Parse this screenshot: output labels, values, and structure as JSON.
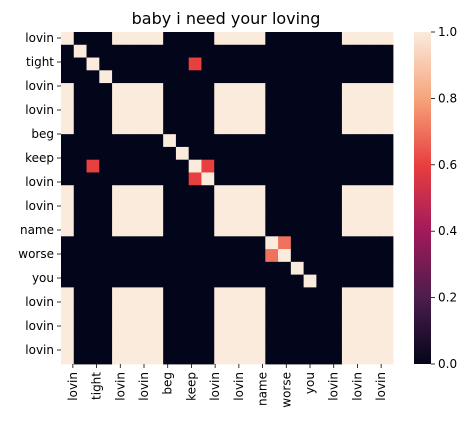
{
  "chart_data": {
    "type": "heatmap",
    "title": "baby i need your loving",
    "xlabel": "",
    "ylabel": "",
    "x_labels": [
      "lovin",
      "tight",
      "lovin",
      "lovin",
      "beg",
      "keep",
      "lovin",
      "lovin",
      "name",
      "worse",
      "you",
      "lovin",
      "lovin",
      "lovin"
    ],
    "y_labels": [
      "lovin",
      "",
      "tight",
      "",
      "lovin",
      "lovin",
      "beg",
      "keep",
      "lovin",
      "lovin",
      "name",
      "worse",
      "you",
      "lovin",
      "lovin",
      "lovin"
    ],
    "rows": [
      "lovin",
      "tight",
      "tight",
      "tight",
      "lovin",
      "lovin",
      "lovin",
      "lovin",
      "beg",
      "keep",
      "keep",
      "keep",
      "lovin",
      "lovin",
      "lovin",
      "lovin",
      "name",
      "name",
      "worse",
      "you",
      "lovin",
      "lovin",
      "lovin",
      "lovin",
      "lovin",
      "lovin"
    ],
    "columns": [
      "lovin",
      "lovin",
      "tight",
      "tight",
      "lovin",
      "lovin",
      "lovin",
      "lovin",
      "beg",
      "beg",
      "keep",
      "keep",
      "lovin",
      "lovin",
      "lovin",
      "lovin",
      "name",
      "name",
      "worse",
      "worse",
      "you",
      "you",
      "lovin",
      "lovin",
      "lovin",
      "lovin"
    ],
    "values": [
      [
        1,
        0,
        0,
        0,
        1,
        1,
        1,
        1,
        0,
        0,
        0,
        0,
        1,
        1,
        1,
        1,
        0,
        0,
        0,
        0,
        0,
        0,
        1,
        1,
        1,
        1
      ],
      [
        0,
        1,
        0,
        0,
        0,
        0,
        0,
        0,
        0,
        0,
        0,
        0,
        0,
        0,
        0,
        0,
        0,
        0,
        0,
        0,
        0,
        0,
        0,
        0,
        0,
        0
      ],
      [
        0,
        0,
        1,
        0,
        0,
        0,
        0,
        0,
        0,
        0,
        0.6,
        0,
        0,
        0,
        0,
        0,
        0,
        0,
        0,
        0,
        0,
        0,
        0,
        0,
        0,
        0
      ],
      [
        0,
        0,
        0,
        1,
        0,
        0,
        0,
        0,
        0,
        0,
        0,
        0,
        0,
        0,
        0,
        0,
        0,
        0,
        0,
        0,
        0,
        0,
        0,
        0,
        0,
        0
      ],
      [
        1,
        0,
        0,
        0,
        1,
        1,
        1,
        1,
        0,
        0,
        0,
        0,
        1,
        1,
        1,
        1,
        0,
        0,
        0,
        0,
        0,
        0,
        1,
        1,
        1,
        1
      ],
      [
        1,
        0,
        0,
        0,
        1,
        1,
        1,
        1,
        0,
        0,
        0,
        0,
        1,
        1,
        1,
        1,
        0,
        0,
        0,
        0,
        0,
        0,
        1,
        1,
        1,
        1
      ],
      [
        1,
        0,
        0,
        0,
        1,
        1,
        1,
        1,
        0,
        0,
        0,
        0,
        1,
        1,
        1,
        1,
        0,
        0,
        0,
        0,
        0,
        0,
        1,
        1,
        1,
        1
      ],
      [
        1,
        0,
        0,
        0,
        1,
        1,
        1,
        1,
        0,
        0,
        0,
        0,
        1,
        1,
        1,
        1,
        0,
        0,
        0,
        0,
        0,
        0,
        1,
        1,
        1,
        1
      ],
      [
        0,
        0,
        0,
        0,
        0,
        0,
        0,
        0,
        1,
        0,
        0,
        0,
        0,
        0,
        0,
        0,
        0,
        0,
        0,
        0,
        0,
        0,
        0,
        0,
        0,
        0
      ],
      [
        0,
        0,
        0,
        0,
        0,
        0,
        0,
        0,
        0,
        1,
        0,
        0,
        0,
        0,
        0,
        0,
        0,
        0,
        0,
        0,
        0,
        0,
        0,
        0,
        0,
        0
      ],
      [
        0,
        0,
        0.6,
        0,
        0,
        0,
        0,
        0,
        0,
        0,
        1,
        0.6,
        0,
        0,
        0,
        0,
        0,
        0,
        0,
        0,
        0,
        0,
        0,
        0,
        0,
        0
      ],
      [
        0,
        0,
        0,
        0,
        0,
        0,
        0,
        0,
        0,
        0,
        0.6,
        1,
        0,
        0,
        0,
        0,
        0,
        0,
        0,
        0,
        0,
        0,
        0,
        0,
        0,
        0
      ],
      [
        1,
        0,
        0,
        0,
        1,
        1,
        1,
        1,
        0,
        0,
        0,
        0,
        1,
        1,
        1,
        1,
        0,
        0,
        0,
        0,
        0,
        0,
        1,
        1,
        1,
        1
      ],
      [
        1,
        0,
        0,
        0,
        1,
        1,
        1,
        1,
        0,
        0,
        0,
        0,
        1,
        1,
        1,
        1,
        0,
        0,
        0,
        0,
        0,
        0,
        1,
        1,
        1,
        1
      ],
      [
        1,
        0,
        0,
        0,
        1,
        1,
        1,
        1,
        0,
        0,
        0,
        0,
        1,
        1,
        1,
        1,
        0,
        0,
        0,
        0,
        0,
        0,
        1,
        1,
        1,
        1
      ],
      [
        1,
        0,
        0,
        0,
        1,
        1,
        1,
        1,
        0,
        0,
        0,
        0,
        1,
        1,
        1,
        1,
        0,
        0,
        0,
        0,
        0,
        0,
        1,
        1,
        1,
        1
      ],
      [
        0,
        0,
        0,
        0,
        0,
        0,
        0,
        0,
        0,
        0,
        0,
        0,
        0,
        0,
        0,
        0,
        1,
        0.7,
        0,
        0,
        0,
        0,
        0,
        0,
        0,
        0
      ],
      [
        0,
        0,
        0,
        0,
        0,
        0,
        0,
        0,
        0,
        0,
        0,
        0,
        0,
        0,
        0,
        0,
        0.7,
        1,
        0,
        0,
        0,
        0,
        0,
        0,
        0,
        0
      ],
      [
        0,
        0,
        0,
        0,
        0,
        0,
        0,
        0,
        0,
        0,
        0,
        0,
        0,
        0,
        0,
        0,
        0,
        0,
        1,
        0,
        0,
        0,
        0,
        0,
        0,
        0
      ],
      [
        0,
        0,
        0,
        0,
        0,
        0,
        0,
        0,
        0,
        0,
        0,
        0,
        0,
        0,
        0,
        0,
        0,
        0,
        0,
        1,
        0,
        0,
        0,
        0,
        0,
        0
      ],
      [
        1,
        0,
        0,
        0,
        1,
        1,
        1,
        1,
        0,
        0,
        0,
        0,
        1,
        1,
        1,
        1,
        0,
        0,
        0,
        0,
        0,
        0,
        1,
        1,
        1,
        1
      ],
      [
        1,
        0,
        0,
        0,
        1,
        1,
        1,
        1,
        0,
        0,
        0,
        0,
        1,
        1,
        1,
        1,
        0,
        0,
        0,
        0,
        0,
        0,
        1,
        1,
        1,
        1
      ],
      [
        1,
        0,
        0,
        0,
        1,
        1,
        1,
        1,
        0,
        0,
        0,
        0,
        1,
        1,
        1,
        1,
        0,
        0,
        0,
        0,
        0,
        0,
        1,
        1,
        1,
        1
      ],
      [
        1,
        0,
        0,
        0,
        1,
        1,
        1,
        1,
        0,
        0,
        0,
        0,
        1,
        1,
        1,
        1,
        0,
        0,
        0,
        0,
        0,
        0,
        1,
        1,
        1,
        1
      ],
      [
        1,
        0,
        0,
        0,
        1,
        1,
        1,
        1,
        0,
        0,
        0,
        0,
        1,
        1,
        1,
        1,
        0,
        0,
        0,
        0,
        0,
        0,
        1,
        1,
        1,
        1
      ],
      [
        1,
        0,
        0,
        0,
        1,
        1,
        1,
        1,
        0,
        0,
        0,
        0,
        1,
        1,
        1,
        1,
        0,
        0,
        0,
        0,
        0,
        0,
        1,
        1,
        1,
        1
      ]
    ],
    "colorbar": {
      "ticks": [
        0.0,
        0.2,
        0.4,
        0.6,
        0.8,
        1.0
      ],
      "tick_labels": [
        "0.0",
        "0.2",
        "0.4",
        "0.6",
        "0.8",
        "1.0"
      ],
      "vmin": 0,
      "vmax": 1
    },
    "colormap": [
      "#03051a",
      "#4c1d4b",
      "#a11a5b",
      "#e83f3f",
      "#f6a47c",
      "#faebdd"
    ],
    "grid": false
  }
}
